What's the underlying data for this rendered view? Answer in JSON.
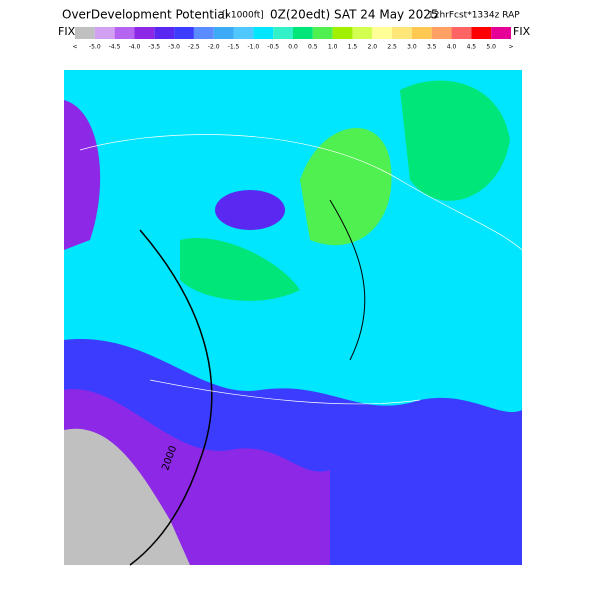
{
  "header": {
    "title": "OverDevelopment Potential",
    "units": "[x1000ft]",
    "time": "0Z(20edt) SAT 24 May 2025",
    "model": "12hrFcst*1334z RAP",
    "left": "FIX",
    "right": "FIX"
  },
  "legend": {
    "labels": [
      "<",
      "-5.0",
      "-4.5",
      "-4.0",
      "-3.5",
      "-3.0",
      "-2.5",
      "-2.0",
      "-1.5",
      "-1.0",
      "-0.5",
      "0.0",
      "0.5",
      "1.0",
      "1.5",
      "2.0",
      "2.5",
      "3.0",
      "3.5",
      "4.0",
      "4.5",
      "5.0",
      ">"
    ],
    "colors": [
      "#c0c0c0",
      "#d2a0f0",
      "#b464f0",
      "#8c28e6",
      "#5a28f0",
      "#3c3cff",
      "#5a8cff",
      "#3caaf5",
      "#50c8ff",
      "#00e6ff",
      "#32f0c8",
      "#00e678",
      "#50f050",
      "#a0f000",
      "#d2ff50",
      "#ffff96",
      "#ffe678",
      "#ffc850",
      "#ffa064",
      "#ff6464",
      "#ff0000",
      "#e60096"
    ]
  },
  "map": {
    "contour_label": "2000"
  }
}
